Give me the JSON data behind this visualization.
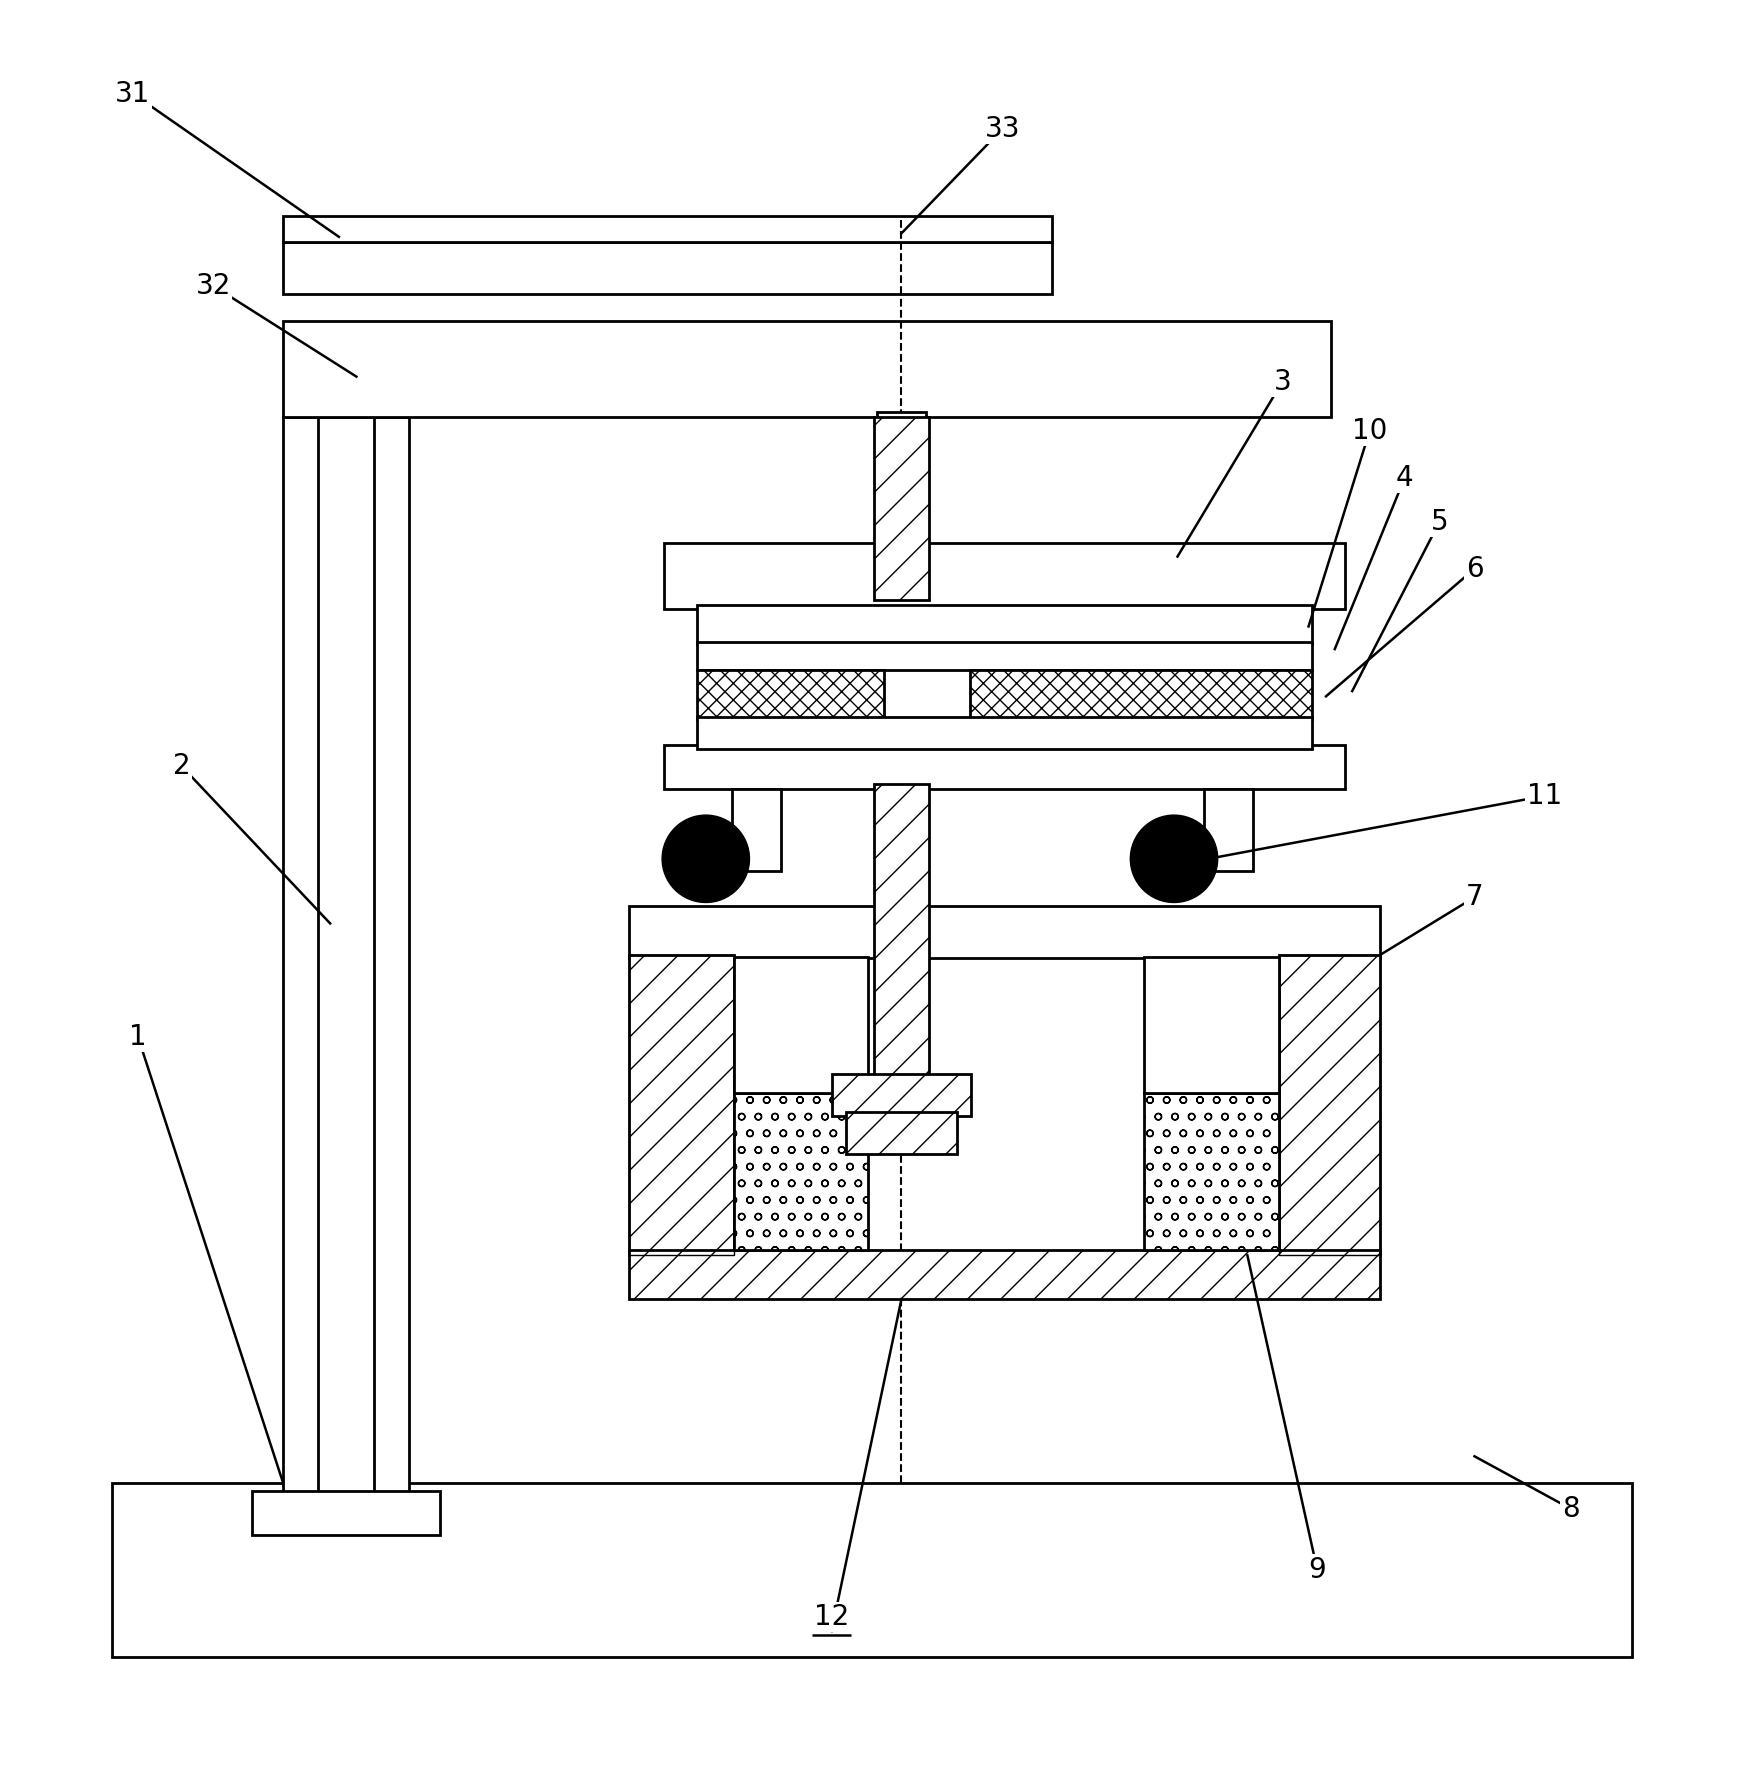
{
  "bg_color": "#ffffff",
  "line_color": "#000000",
  "figsize": [
    17.61,
    17.77
  ],
  "dpi": 100
}
